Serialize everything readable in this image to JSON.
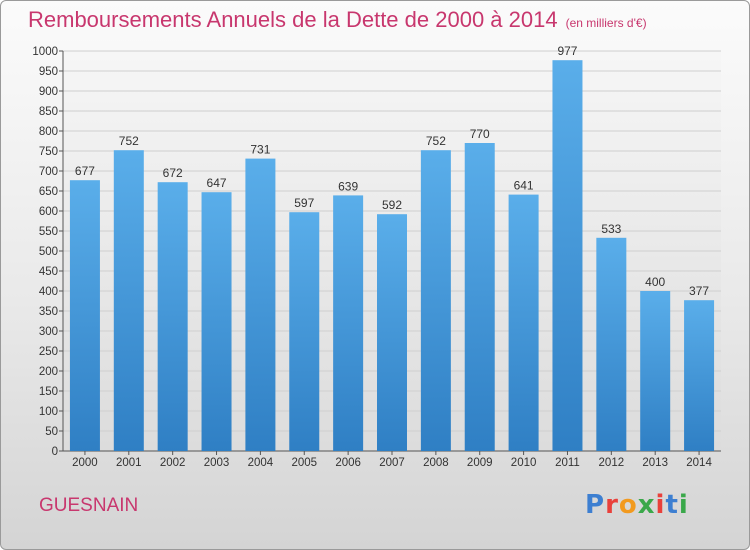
{
  "chart_data": {
    "type": "bar",
    "title": "Remboursements Annuels de la Dette de 2000 à 2014",
    "unit": "(en milliers d'€)",
    "categories": [
      "2000",
      "2001",
      "2002",
      "2003",
      "2004",
      "2005",
      "2006",
      "2007",
      "2008",
      "2009",
      "2010",
      "2011",
      "2012",
      "2013",
      "2014"
    ],
    "values": [
      677,
      752,
      672,
      647,
      731,
      597,
      639,
      592,
      752,
      770,
      641,
      977,
      533,
      400,
      377
    ],
    "ylim": [
      0,
      1000
    ],
    "yticks": [
      0,
      50,
      100,
      150,
      200,
      250,
      300,
      350,
      400,
      450,
      500,
      550,
      600,
      650,
      700,
      750,
      800,
      850,
      900,
      950,
      1000
    ],
    "grid": true,
    "bar_color": "#4a9fe0",
    "data_labels": true
  },
  "footer": {
    "town": "GUESNAIN",
    "logo_letters": [
      {
        "ch": "P",
        "color": "#3d7fd1"
      },
      {
        "ch": "r",
        "color": "#e9403b"
      },
      {
        "ch": "o",
        "color": "#f29a1f"
      },
      {
        "ch": "x",
        "color": "#3aa84a"
      },
      {
        "ch": "i",
        "color": "#e9403b"
      },
      {
        "ch": "t",
        "color": "#3d7fd1"
      },
      {
        "ch": "i",
        "color": "#3aa84a"
      }
    ]
  }
}
